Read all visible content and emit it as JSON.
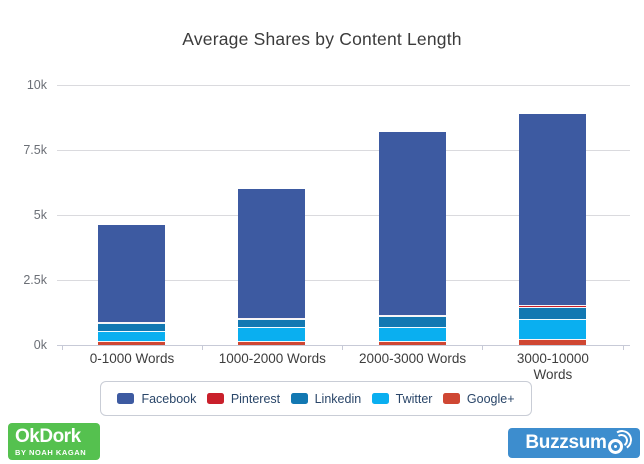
{
  "chart_data": {
    "type": "bar",
    "stacked": true,
    "title": "Average Shares by Content Length",
    "xlabel": "",
    "ylabel": "",
    "grid": true,
    "legend_position": "bottom",
    "ylim": [
      0,
      10000
    ],
    "yticks": [
      {
        "value": 0,
        "label": "0k"
      },
      {
        "value": 2500,
        "label": "2.5k"
      },
      {
        "value": 5000,
        "label": "5k"
      },
      {
        "value": 7500,
        "label": "7.5k"
      },
      {
        "value": 10000,
        "label": "10k"
      }
    ],
    "categories": [
      "0-1000 Words",
      "1000-2000 Words",
      "2000-3000 Words",
      "3000-10000 Words"
    ],
    "series": [
      {
        "name": "Facebook",
        "color": "#3d5aa1",
        "values": [
          3750,
          4950,
          7050,
          7350
        ]
      },
      {
        "name": "Pinterest",
        "color": "#c9202b",
        "values": [
          40,
          50,
          50,
          100
        ]
      },
      {
        "name": "Linkedin",
        "color": "#1278b2",
        "values": [
          290,
          310,
          390,
          440
        ]
      },
      {
        "name": "Twitter",
        "color": "#0aaff0",
        "values": [
          390,
          520,
          560,
          780
        ]
      },
      {
        "name": "Google+",
        "color": "#cf4733",
        "values": [
          160,
          170,
          150,
          230
        ]
      }
    ],
    "totals": [
      4630,
      6000,
      8200,
      8900
    ]
  },
  "footer": {
    "okdork": {
      "title": "OkDork",
      "subtitle": "BY NOAH KAGAN",
      "bg": "#55c14f"
    },
    "buzzsumo": {
      "label": "Buzzsumo",
      "label_prefix": "Buzzsum",
      "bg": "#3d8dce"
    }
  }
}
